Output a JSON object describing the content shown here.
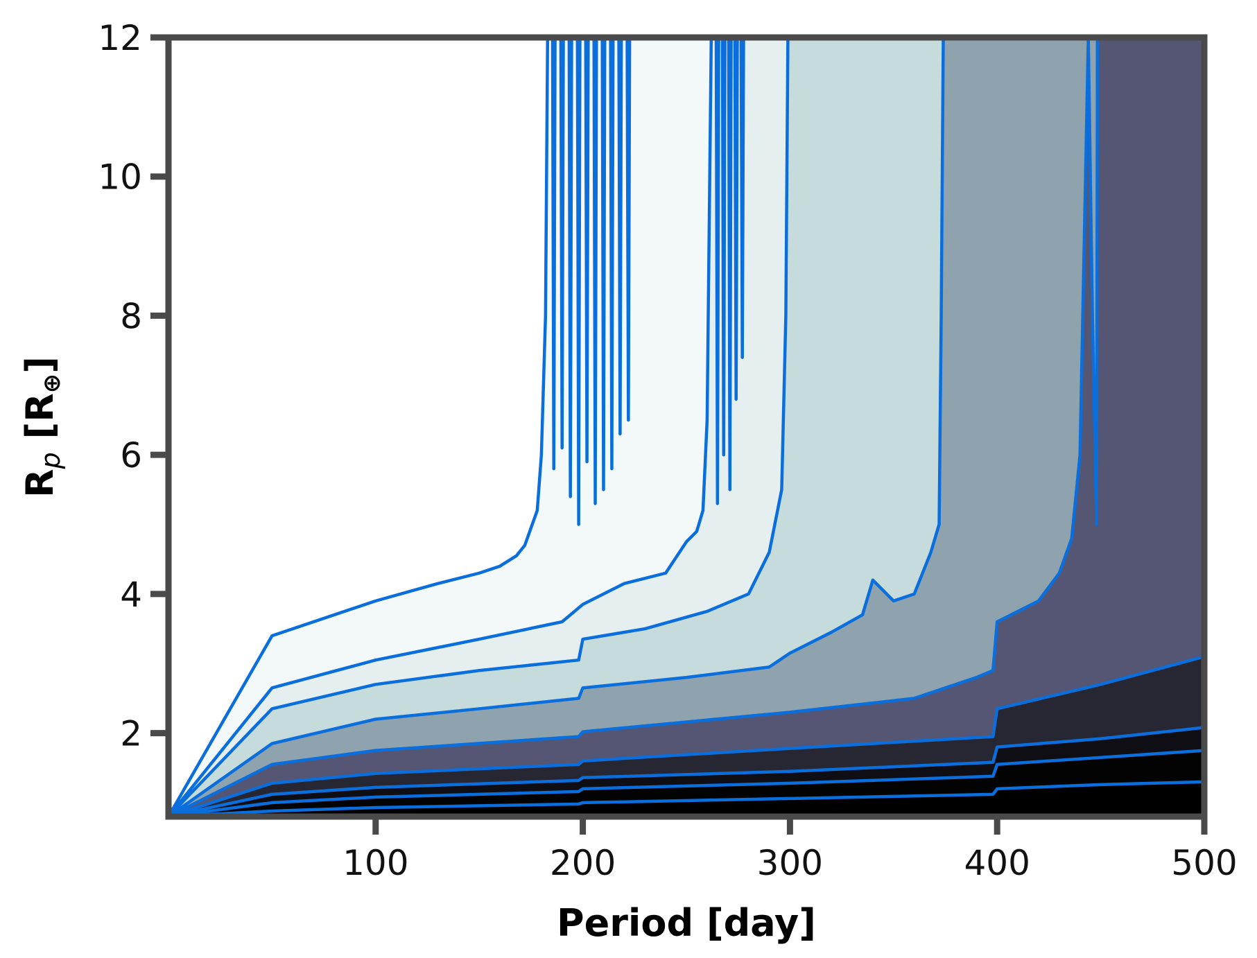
{
  "chart_data": {
    "type": "area",
    "title": "",
    "xlabel": "Period [day]",
    "ylabel_main": "R",
    "ylabel_sub": "p",
    "ylabel_rest": " [R",
    "ylabel_sym": "⊕",
    "ylabel_close": "]",
    "xlim": [
      0,
      500
    ],
    "ylim": [
      0.8,
      12
    ],
    "xticks": [
      100,
      200,
      300,
      400,
      500
    ],
    "yticks": [
      2,
      4,
      6,
      8,
      10,
      12
    ],
    "grid": false,
    "legend": "none",
    "colors": {
      "line": "#0a6edc",
      "frame": "#4a4a4a",
      "bands": [
        "#ffffff",
        "#f3f8f9",
        "#e6efef",
        "#c6dbdc",
        "#8ea3ad",
        "#545673",
        "#272633",
        "#0e0e14",
        "#030303"
      ]
    },
    "contours": [
      {
        "x": [
          0,
          50,
          100,
          130,
          150,
          160,
          168,
          172,
          178,
          180,
          182,
          183
        ],
        "y": [
          0.8,
          3.4,
          3.9,
          4.15,
          4.3,
          4.4,
          4.55,
          4.7,
          5.2,
          6.0,
          8.0,
          12
        ],
        "spikes": [
          [
            186,
            5.8
          ],
          [
            190,
            6.1
          ],
          [
            194,
            5.4
          ],
          [
            198,
            5.0
          ],
          [
            202,
            5.9
          ],
          [
            206,
            5.3
          ],
          [
            210,
            5.5
          ],
          [
            214,
            5.8
          ],
          [
            218,
            6.3
          ],
          [
            222,
            6.5
          ],
          [
            224,
            12
          ]
        ]
      },
      {
        "x": [
          0,
          50,
          100,
          150,
          190,
          200,
          220,
          240,
          250,
          255,
          258,
          260,
          262
        ],
        "y": [
          0.8,
          2.65,
          3.05,
          3.35,
          3.6,
          3.85,
          4.15,
          4.3,
          4.75,
          4.9,
          5.2,
          6.5,
          12
        ],
        "spikes": [
          [
            265,
            5.3
          ],
          [
            268,
            6.0
          ],
          [
            271,
            5.5
          ],
          [
            274,
            6.8
          ],
          [
            277,
            7.4
          ],
          [
            280,
            12
          ]
        ]
      },
      {
        "x": [
          0,
          50,
          100,
          150,
          198,
          200,
          230,
          260,
          280,
          290,
          296,
          298,
          299
        ],
        "y": [
          0.8,
          2.35,
          2.7,
          2.9,
          3.05,
          3.35,
          3.5,
          3.75,
          4.0,
          4.6,
          5.5,
          8.0,
          12
        ],
        "spikes": []
      },
      {
        "x": [
          0,
          50,
          100,
          150,
          198,
          200,
          250,
          290,
          300,
          320,
          335,
          340,
          350,
          360,
          368,
          372,
          373,
          374
        ],
        "y": [
          0.8,
          1.85,
          2.2,
          2.35,
          2.5,
          2.65,
          2.8,
          2.95,
          3.15,
          3.45,
          3.7,
          4.2,
          3.9,
          4.0,
          4.6,
          5.0,
          8.0,
          12
        ],
        "spikes": []
      },
      {
        "x": [
          0,
          50,
          100,
          198,
          200,
          300,
          360,
          390,
          398,
          400,
          420,
          430,
          436,
          440,
          442,
          444,
          446,
          448
        ],
        "y": [
          0.8,
          1.55,
          1.75,
          1.95,
          2.02,
          2.3,
          2.5,
          2.8,
          2.9,
          3.6,
          3.9,
          4.3,
          4.8,
          6.0,
          9.0,
          12,
          8.0,
          5.0
        ],
        "spikes": [
          [
            449,
            12
          ]
        ]
      },
      {
        "x": [
          0,
          50,
          100,
          198,
          200,
          300,
          398,
          400,
          450,
          500
        ],
        "y": [
          0.8,
          1.28,
          1.42,
          1.55,
          1.6,
          1.78,
          1.95,
          2.35,
          2.7,
          3.1
        ],
        "spikes": []
      },
      {
        "x": [
          0,
          50,
          100,
          198,
          200,
          300,
          398,
          400,
          450,
          500
        ],
        "y": [
          0.8,
          1.12,
          1.22,
          1.32,
          1.36,
          1.45,
          1.58,
          1.8,
          1.92,
          2.08
        ],
        "spikes": []
      },
      {
        "x": [
          0,
          50,
          100,
          198,
          200,
          300,
          398,
          400,
          450,
          500
        ],
        "y": [
          0.8,
          1.0,
          1.08,
          1.16,
          1.2,
          1.28,
          1.38,
          1.55,
          1.65,
          1.75
        ],
        "spikes": []
      },
      {
        "x": [
          0,
          50,
          100,
          198,
          200,
          300,
          398,
          400,
          450,
          500
        ],
        "y": [
          0.8,
          0.88,
          0.93,
          0.98,
          1.0,
          1.06,
          1.12,
          1.2,
          1.26,
          1.3
        ],
        "spikes": []
      }
    ]
  }
}
